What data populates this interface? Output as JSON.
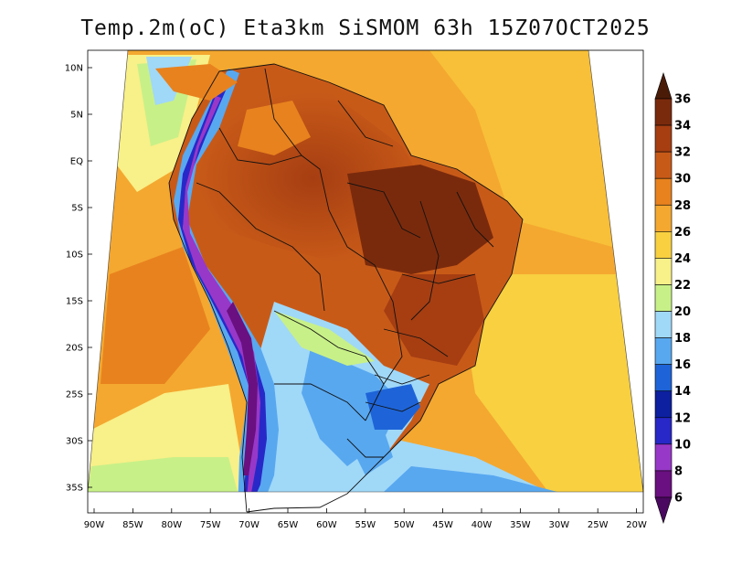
{
  "title": "Temp.2m(oC) Eta3km SiSMOM 63h 15Z07OCT2025",
  "map": {
    "lat_ticks": [
      "10N",
      "5N",
      "EQ",
      "5S",
      "10S",
      "15S",
      "20S",
      "25S",
      "30S",
      "35S"
    ],
    "lon_ticks": [
      "90W",
      "85W",
      "80W",
      "75W",
      "70W",
      "65W",
      "60W",
      "55W",
      "50W",
      "45W",
      "40W",
      "35W",
      "30W",
      "25W",
      "20W"
    ]
  },
  "colorbar": {
    "labels": [
      "36",
      "34",
      "32",
      "30",
      "28",
      "26",
      "24",
      "22",
      "20",
      "18",
      "16",
      "14",
      "12",
      "10",
      "8",
      "6"
    ],
    "colors": [
      "#4a1c08",
      "#7a2a0c",
      "#a63e12",
      "#c85a18",
      "#e8821e",
      "#f4a830",
      "#f8d040",
      "#f8f088",
      "#c8f088",
      "#a0d8f8",
      "#58a8f0",
      "#1e64d8",
      "#0c20a0",
      "#2828c8",
      "#9838c8",
      "#6a1080",
      "#4a0860"
    ]
  }
}
